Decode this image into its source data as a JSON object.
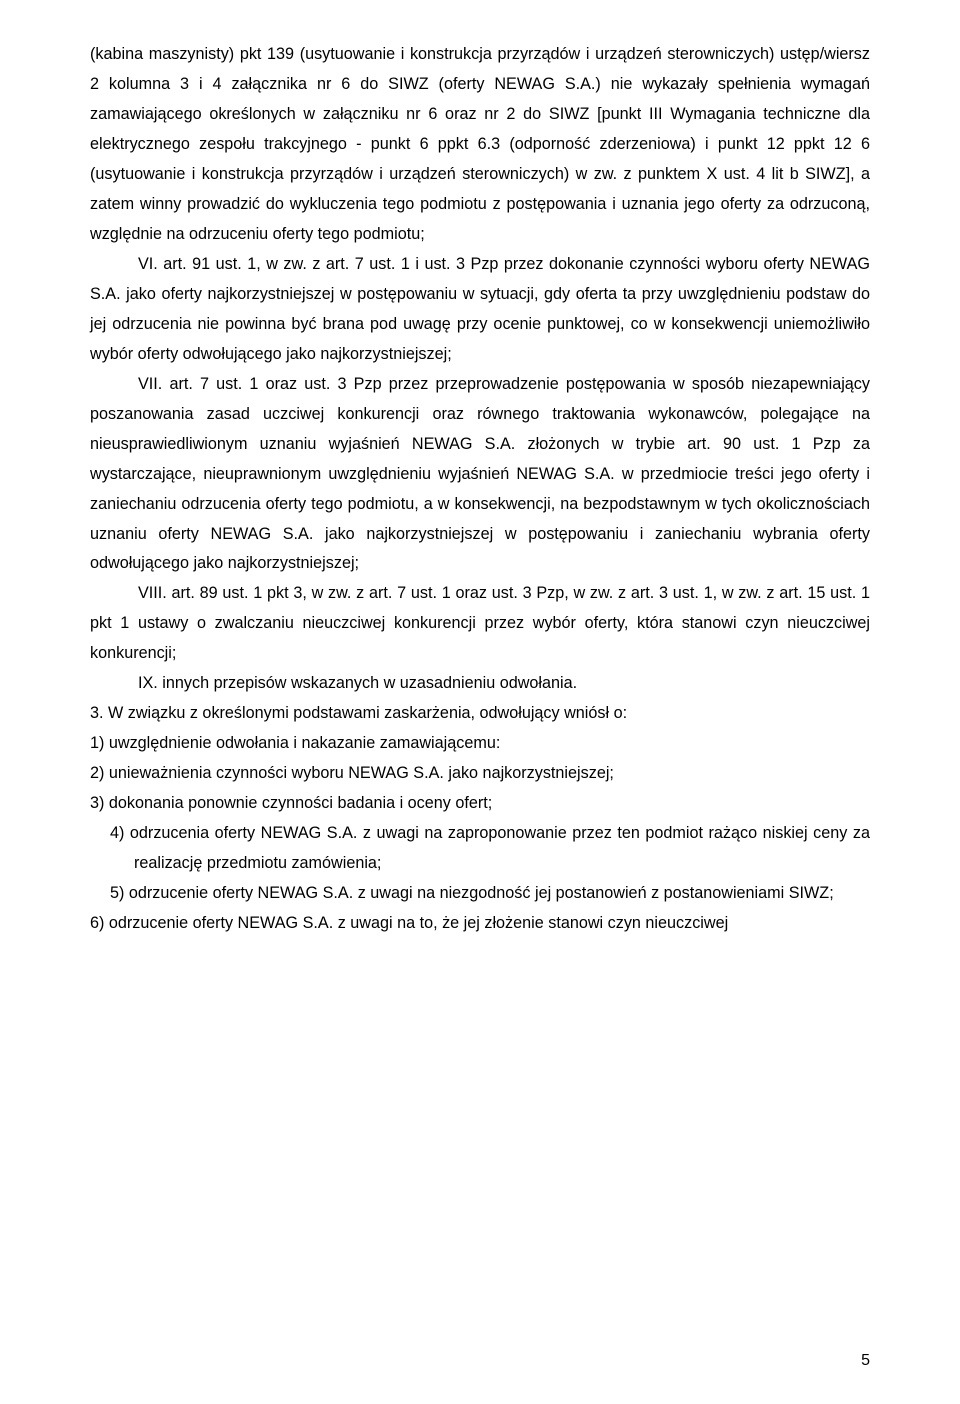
{
  "body": {
    "p1": "(kabina maszynisty) pkt 139 (usytuowanie i konstrukcja przyrządów i urządzeń sterowniczych) ustęp/wiersz 2 kolumna 3 i 4 załącznika nr 6 do SIWZ (oferty NEWAG S.A.) nie wykazały spełnienia wymagań zamawiającego określonych w załączniku nr 6 oraz nr 2 do SIWZ [punkt III Wymagania techniczne dla elektrycznego zespołu trakcyjnego - punkt 6 ppkt 6.3 (odporność zderzeniowa) i punkt 12 ppkt 12 6 (usytuowanie i konstrukcja przyrządów i urządzeń sterowniczych) w zw. z punktem X ust. 4 lit b SIWZ], a zatem winny prowadzić do wykluczenia tego podmiotu z postępowania i uznania jego oferty za odrzuconą, względnie na odrzuceniu oferty tego podmiotu;",
    "p2": "VI. art. 91 ust. 1, w zw. z art. 7 ust. 1 i ust. 3 Pzp przez dokonanie czynności wyboru oferty NEWAG S.A. jako oferty najkorzystniejszej w postępowaniu w sytuacji, gdy oferta ta przy uwzględnieniu podstaw do jej odrzucenia nie powinna być brana pod uwagę przy ocenie punktowej, co w konsekwencji uniemożliwiło wybór oferty odwołującego jako najkorzystniejszej;",
    "p3": "VII. art. 7 ust. 1 oraz ust. 3 Pzp przez przeprowadzenie postępowania w sposób niezapewniający poszanowania zasad uczciwej konkurencji oraz równego traktowania wykonawców, polegające na nieusprawiedliwionym uznaniu wyjaśnień NEWAG S.A. złożonych w trybie art. 90 ust. 1 Pzp za wystarczające, nieuprawnionym uwzględnieniu wyjaśnień NEWAG S.A. w przedmiocie treści jego oferty i zaniechaniu odrzucenia oferty tego podmiotu, a w konsekwencji, na bezpodstawnym w tych okolicznościach uznaniu oferty NEWAG S.A. jako najkorzystniejszej w postępowaniu i zaniechaniu wybrania oferty odwołującego jako najkorzystniejszej;",
    "p4": "VIII. art. 89 ust. 1 pkt 3, w zw. z art. 7 ust. 1 oraz ust. 3 Pzp, w zw. z art. 3 ust. 1, w zw. z art. 15 ust. 1 pkt 1 ustawy o zwalczaniu nieuczciwej konkurencji przez wybór oferty, która stanowi czyn nieuczciwej konkurencji;",
    "p5": "IX. innych przepisów wskazanych w uzasadnieniu odwołania.",
    "p6": "3. W związku z określonymi podstawami zaskarżenia, odwołujący wniósł o:",
    "li1": "1) uwzględnienie odwołania i nakazanie zamawiającemu:",
    "li2": "2) unieważnienia czynności wyboru NEWAG S.A. jako najkorzystniejszej;",
    "li3": "3) dokonania ponownie czynności badania i oceny ofert;",
    "li4": "4) odrzucenia oferty NEWAG S.A. z uwagi na zaproponowanie przez ten podmiot rażąco niskiej ceny za realizację przedmiotu zamówienia;",
    "li5": "5) odrzucenie oferty NEWAG S.A. z uwagi na niezgodność jej postanowień z postanowieniami SIWZ;",
    "li6": "6) odrzucenie oferty NEWAG S.A. z uwagi na to, że jej złożenie stanowi czyn nieuczciwej"
  },
  "page_number": "5"
}
